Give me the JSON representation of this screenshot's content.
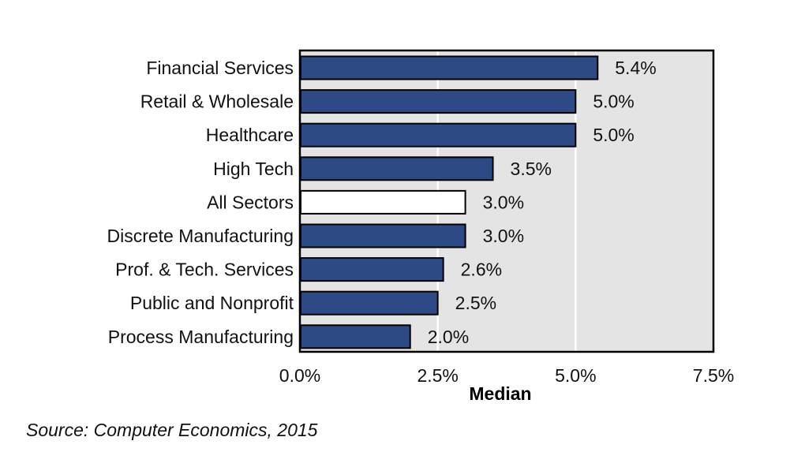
{
  "chart_data": {
    "type": "bar",
    "orientation": "horizontal",
    "categories": [
      "Financial Services",
      "Retail & Wholesale",
      "Healthcare",
      "High Tech",
      "All Sectors",
      "Discrete Manufacturing",
      "Prof. & Tech. Services",
      "Public and Nonprofit",
      "Process Manufacturing"
    ],
    "values": [
      5.4,
      5.0,
      5.0,
      3.5,
      3.0,
      3.0,
      2.6,
      2.5,
      2.0
    ],
    "value_labels": [
      "5.4%",
      "5.0%",
      "5.0%",
      "3.5%",
      "3.0%",
      "3.0%",
      "2.6%",
      "2.5%",
      "2.0%"
    ],
    "highlight_index": 4,
    "xlabel": "Median",
    "xlim": [
      0,
      7.5
    ],
    "xticks": [
      0,
      2.5,
      5.0,
      7.5
    ],
    "xtick_labels": [
      "0.0%",
      "2.5%",
      "5.0%",
      "7.5%"
    ],
    "grid": "vertical",
    "colors": {
      "bar": "#2e4a86",
      "highlight_bar": "#ffffff",
      "plot_bg": "#e4e4e4",
      "grid": "#ffffff"
    }
  },
  "source": "Source: Computer Economics, 2015"
}
